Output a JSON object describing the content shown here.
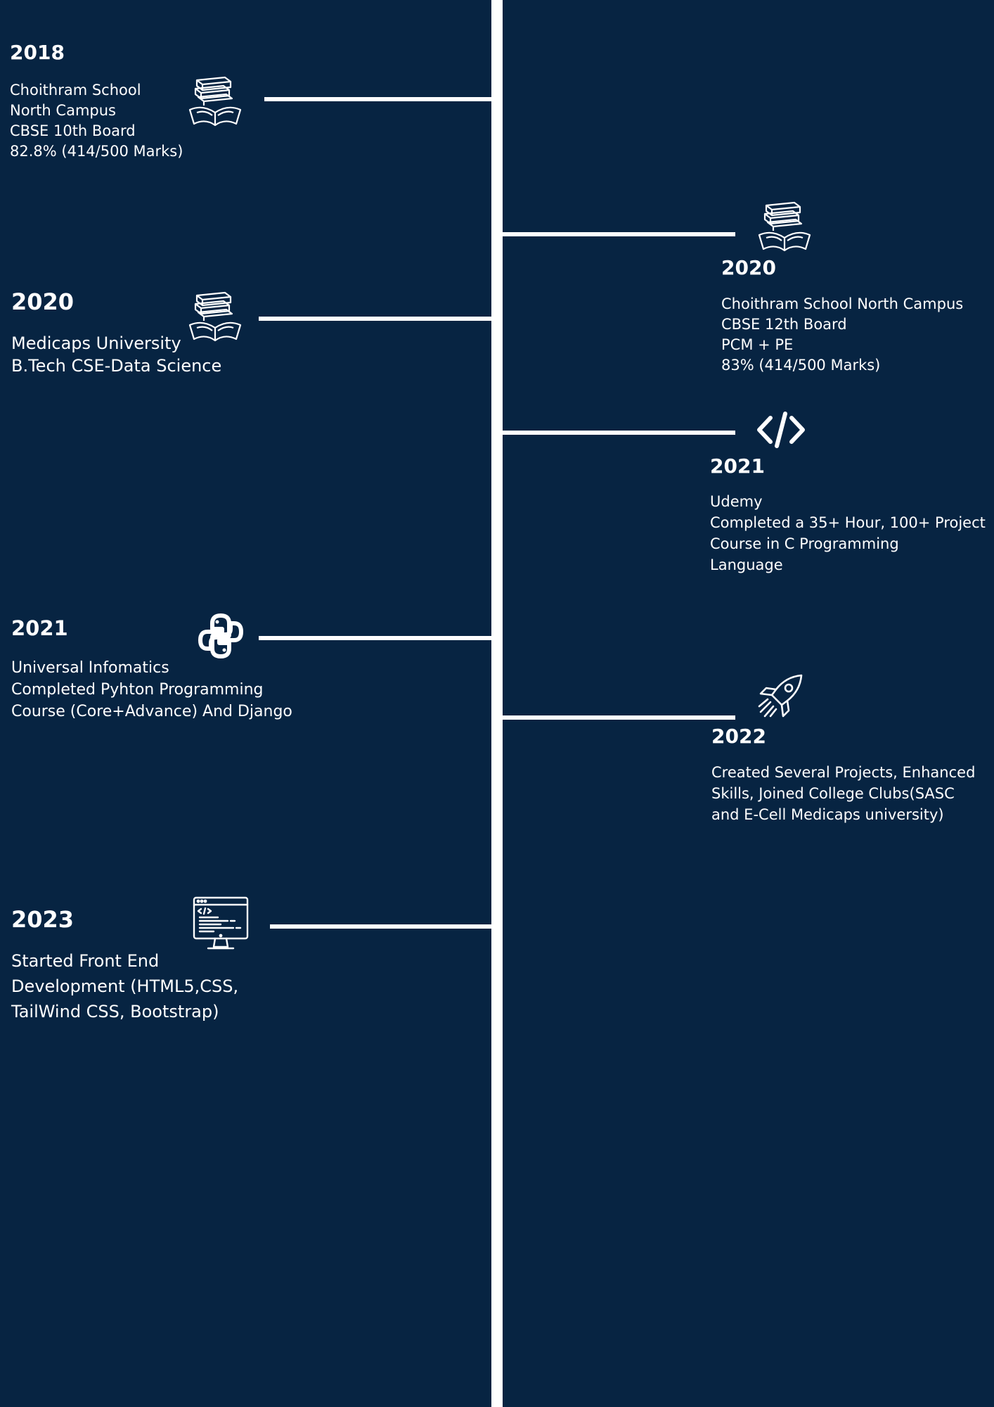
{
  "colors": {
    "background": "#072442",
    "foreground": "#ffffff"
  },
  "entries": [
    {
      "side": "left",
      "year": "2018",
      "lines": [
        "Choithram School",
        "North Campus",
        "CBSE 10th Board",
        "82.8% (414/500 Marks)"
      ],
      "icon": "books-icon"
    },
    {
      "side": "right",
      "year": "2020",
      "lines": [
        "Choithram School North Campus",
        "CBSE 12th Board",
        "PCM + PE",
        "83% (414/500 Marks)"
      ],
      "icon": "books-icon"
    },
    {
      "side": "left",
      "year": "2020",
      "lines": [
        "Medicaps University",
        "B.Tech CSE-Data Science"
      ],
      "icon": "books-icon"
    },
    {
      "side": "right",
      "year": "2021",
      "lines": [
        "Udemy",
        "Completed a 35+ Hour, 100+ Project",
        "Course  in C Programming",
        "Language"
      ],
      "icon": "code-icon"
    },
    {
      "side": "left",
      "year": "2021",
      "lines": [
        "Universal Infomatics",
        "Completed Pyhton Programming",
        "Course (Core+Advance) And Django"
      ],
      "icon": "python-icon"
    },
    {
      "side": "right",
      "year": "2022",
      "lines": [
        "Created Several Projects, Enhanced",
        "Skills, Joined College Clubs(SASC",
        "and E-Cell Medicaps university)"
      ],
      "icon": "rocket-icon"
    },
    {
      "side": "left",
      "year": "2023",
      "lines": [
        "Started Front End",
        "Development (HTML5,CSS,",
        "TailWind CSS, Bootstrap)"
      ],
      "icon": "monitor-code-icon"
    }
  ]
}
